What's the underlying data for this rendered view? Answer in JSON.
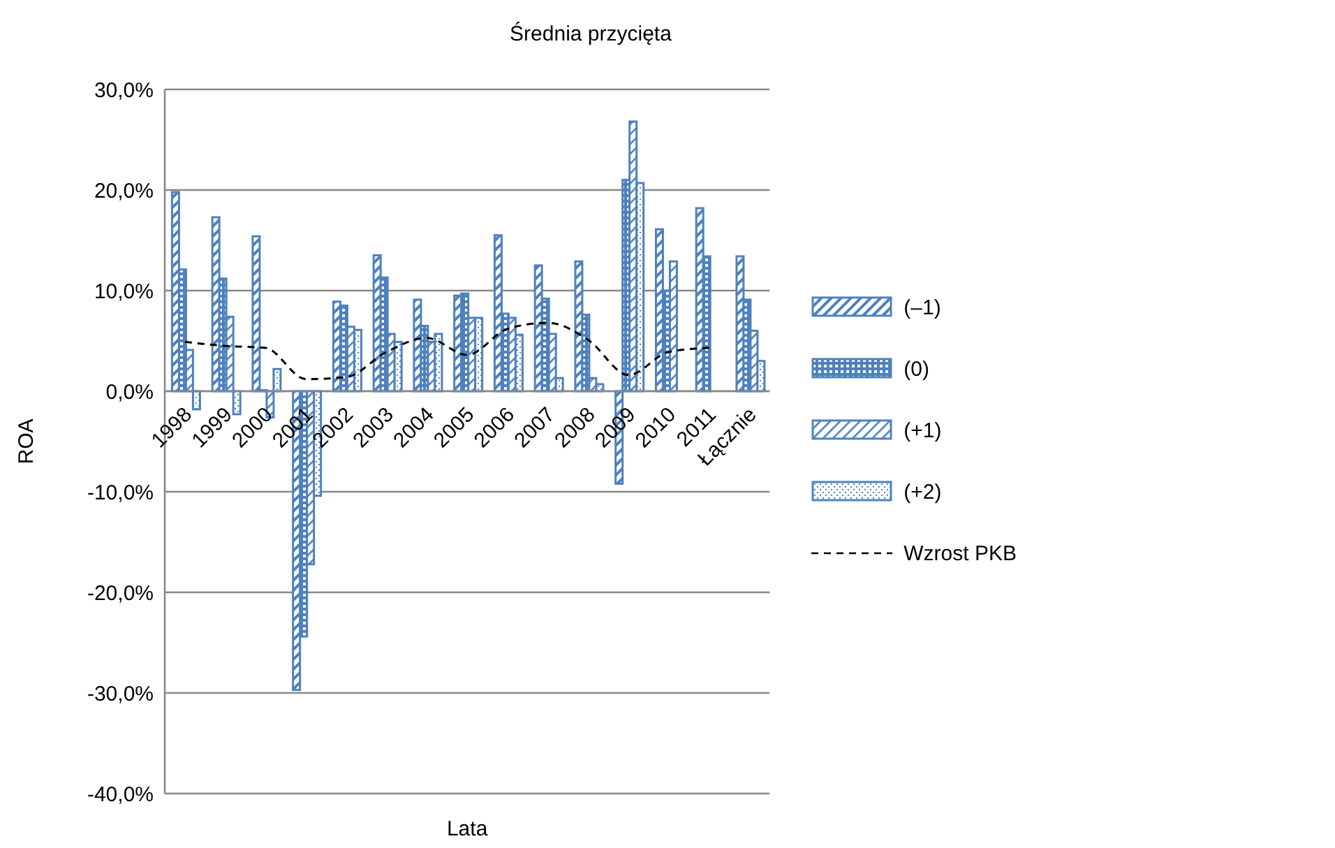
{
  "chart_data": {
    "type": "bar",
    "title": "Średnia przycięta",
    "xlabel": "Lata",
    "ylabel": "ROA",
    "categories": [
      "1998",
      "1999",
      "2000",
      "2001",
      "2002",
      "2003",
      "2004",
      "2005",
      "2006",
      "2007",
      "2008",
      "2009",
      "2010",
      "2011",
      "Łącznie"
    ],
    "series": [
      {
        "name": "(–1)",
        "color": "#4f81bd",
        "values": [
          19.8,
          17.3,
          15.4,
          -29.7,
          8.9,
          13.5,
          9.1,
          9.5,
          15.5,
          12.5,
          12.9,
          -9.2,
          16.1,
          18.2,
          13.4
        ]
      },
      {
        "name": "(0)",
        "color": "#4f81bd",
        "values": [
          12.1,
          11.2,
          0.1,
          -24.4,
          8.5,
          11.3,
          6.5,
          9.7,
          7.7,
          9.2,
          7.6,
          21.0,
          10.0,
          13.4,
          9.1
        ]
      },
      {
        "name": "(+1)",
        "color": "#4f81bd",
        "values": [
          4.1,
          7.4,
          -2.6,
          -17.2,
          6.4,
          5.7,
          4.9,
          7.3,
          7.3,
          5.7,
          1.3,
          26.8,
          12.9,
          null,
          6.0
        ]
      },
      {
        "name": "(+2)",
        "color": "#4f81bd",
        "values": [
          -1.8,
          -2.3,
          2.2,
          -10.4,
          6.1,
          4.9,
          5.7,
          7.3,
          5.6,
          1.3,
          0.7,
          20.7,
          null,
          null,
          3.0
        ]
      },
      {
        "name": "Wzrost PKB",
        "type": "line",
        "color": "#000000",
        "values": [
          4.9,
          4.5,
          4.3,
          1.2,
          1.4,
          3.9,
          5.3,
          3.6,
          6.2,
          6.8,
          5.1,
          1.6,
          3.9,
          4.3,
          null
        ]
      }
    ],
    "ylim": [
      -40,
      30
    ],
    "yticks": [
      {
        "value": -40,
        "label": "-40,0%"
      },
      {
        "value": -30,
        "label": "-30,0%"
      },
      {
        "value": -20,
        "label": "-20,0%"
      },
      {
        "value": -10,
        "label": "-10,0%"
      },
      {
        "value": 0,
        "label": "0,0%"
      },
      {
        "value": 10,
        "label": "10,0%"
      },
      {
        "value": 20,
        "label": "20,0%"
      },
      {
        "value": 30,
        "label": "30,0%"
      }
    ],
    "grid": "y",
    "legend": "right",
    "line_style": "dashed",
    "marker": "none"
  }
}
